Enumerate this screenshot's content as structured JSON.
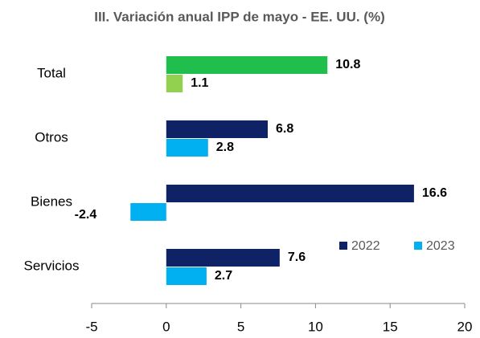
{
  "chart_data": {
    "type": "hbar",
    "title": "III. Variación anual IPP de mayo - EE. UU. (%)",
    "categories": [
      "Total",
      "Otros",
      "Bienes",
      "Servicios"
    ],
    "series": [
      {
        "name": "2022",
        "color": "#0e2265",
        "colors": [
          "#1fbe4d",
          "#0e2265",
          "#0e2265",
          "#0e2265"
        ],
        "values": [
          10.8,
          6.8,
          16.6,
          7.6
        ]
      },
      {
        "name": "2023",
        "color": "#00b0f0",
        "colors": [
          "#92d050",
          "#00b0f0",
          "#00b0f0",
          "#00b0f0"
        ],
        "values": [
          1.1,
          2.8,
          -2.4,
          2.7
        ]
      }
    ],
    "xlim": [
      -5,
      20
    ],
    "xticks": [
      -5,
      0,
      5,
      10,
      15,
      20
    ],
    "grid": false
  }
}
